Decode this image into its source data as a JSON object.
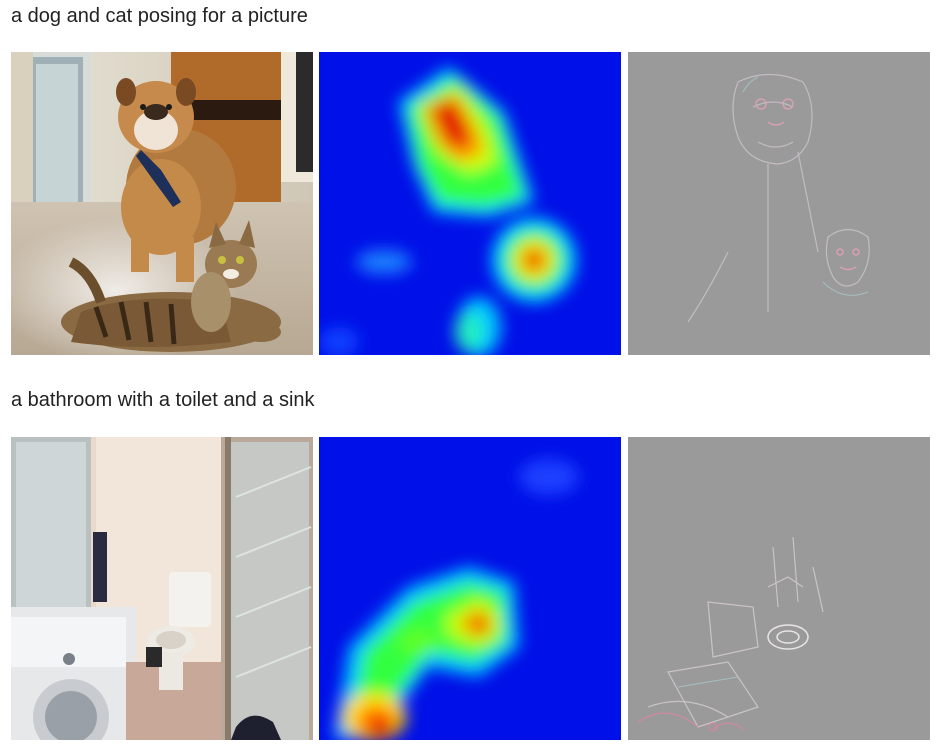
{
  "examples": [
    {
      "caption": "a dog and cat posing for a picture",
      "panels": [
        {
          "kind": "photo",
          "subject": "bulldog and tabby cat on carpet"
        },
        {
          "kind": "heatmap",
          "colormap": "jet"
        },
        {
          "kind": "guided-backprop",
          "background": "#9a9a9a"
        }
      ]
    },
    {
      "caption": "a bathroom with a toilet and a sink",
      "panels": [
        {
          "kind": "photo",
          "subject": "small bathroom with toilet and washing machine"
        },
        {
          "kind": "heatmap",
          "colormap": "jet"
        },
        {
          "kind": "guided-backprop",
          "background": "#9a9a9a"
        }
      ]
    }
  ],
  "colors": {
    "jet_low": "#0010e8",
    "jet_mid": "#00e060",
    "jet_high": "#e00000",
    "gray_bg": "#9a9a9a"
  }
}
